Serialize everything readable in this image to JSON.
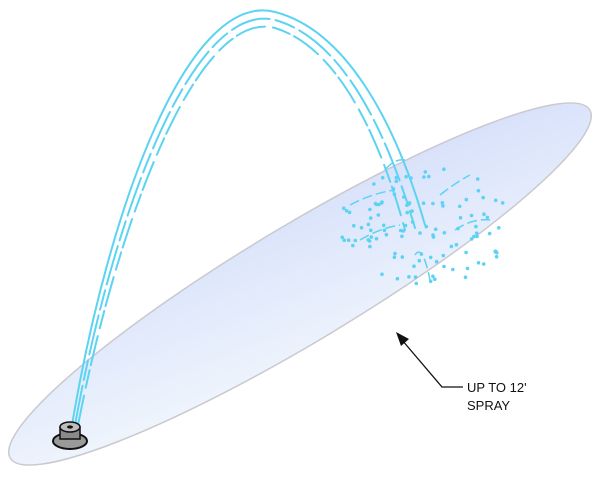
{
  "callout": {
    "lines": [
      "UP TO 12'",
      "SPRAY"
    ]
  }
}
